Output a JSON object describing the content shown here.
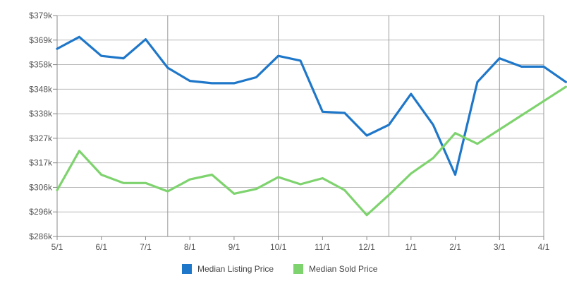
{
  "chart_data": {
    "type": "line",
    "x": [
      "5/1",
      "",
      "6/1",
      "",
      "7/1",
      "",
      "8/1",
      "",
      "9/1",
      "",
      "10/1",
      "",
      "11/1",
      "",
      "12/1",
      "",
      "1/1",
      "",
      "2/1",
      "",
      "3/1",
      "",
      "4/1"
    ],
    "x_tick_labels": [
      "5/1",
      "6/1",
      "7/1",
      "8/1",
      "9/1",
      "10/1",
      "11/1",
      "12/1",
      "1/1",
      "2/1",
      "3/1",
      "4/1"
    ],
    "y_tick_labels": [
      "$286k",
      "$296k",
      "$306k",
      "$317k",
      "$327k",
      "$338k",
      "$348k",
      "$358k",
      "$369k",
      "$379k"
    ],
    "ylim": [
      286,
      379
    ],
    "legend_position": "bottom",
    "grid": true,
    "series": [
      {
        "name": "Median Listing Price",
        "color": "#1f77c9",
        "points": [
          [
            0,
            365
          ],
          [
            0.5,
            370
          ],
          [
            1,
            362
          ],
          [
            1.5,
            361
          ],
          [
            2,
            369
          ],
          [
            2.5,
            357
          ],
          [
            3,
            351.5
          ],
          [
            3.5,
            350.5
          ],
          [
            4,
            350.5
          ],
          [
            4.5,
            353
          ],
          [
            5,
            362
          ],
          [
            5.5,
            360
          ],
          [
            6,
            338.5
          ],
          [
            6.5,
            338
          ],
          [
            7,
            328.5
          ],
          [
            7.5,
            333
          ],
          [
            8,
            346
          ],
          [
            8.5,
            333
          ],
          [
            9,
            312
          ],
          [
            9.5,
            351
          ],
          [
            10,
            361
          ],
          [
            10.5,
            357.5
          ],
          [
            11,
            357.5
          ],
          [
            11.5,
            351
          ]
        ]
      },
      {
        "name": "Median Sold Price",
        "color": "#7ed36e",
        "points": [
          [
            0,
            305.5
          ],
          [
            0.5,
            322
          ],
          [
            1,
            312
          ],
          [
            1.5,
            308.5
          ],
          [
            2,
            308.5
          ],
          [
            2.5,
            305
          ],
          [
            3,
            310
          ],
          [
            3.5,
            312
          ],
          [
            4,
            304
          ],
          [
            4.5,
            306
          ],
          [
            5,
            311
          ],
          [
            5.5,
            308
          ],
          [
            6,
            310.5
          ],
          [
            6.5,
            305.5
          ],
          [
            7,
            295
          ],
          [
            7.5,
            303.5
          ],
          [
            8,
            312.5
          ],
          [
            8.5,
            319
          ],
          [
            9,
            329.5
          ],
          [
            9.5,
            325
          ],
          [
            10,
            331
          ],
          [
            10.5,
            337
          ],
          [
            11,
            343
          ],
          [
            11.5,
            349
          ]
        ]
      }
    ]
  }
}
